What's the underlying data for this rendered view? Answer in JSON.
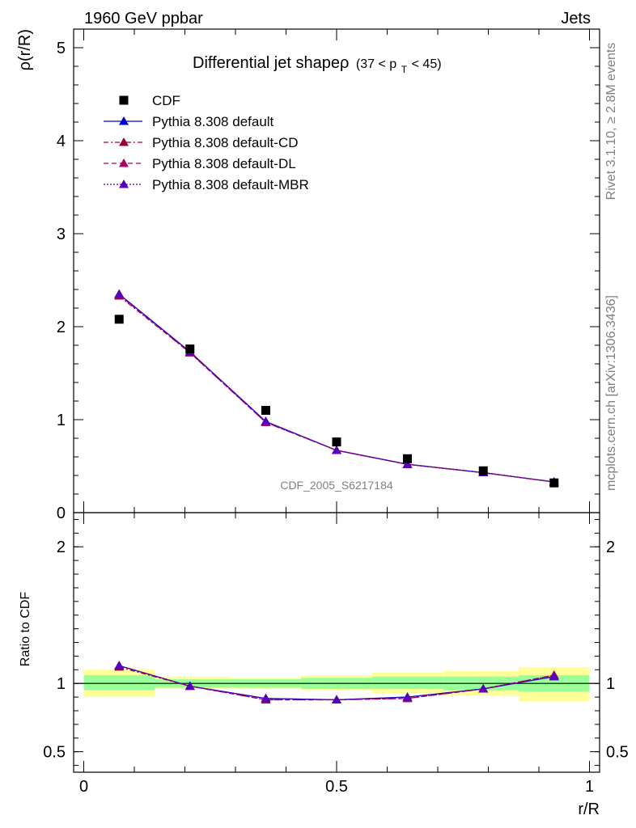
{
  "header": {
    "left_label": "1960 GeV ppbar",
    "right_label": "Jets"
  },
  "side": {
    "rivet": "Rivet 3.1.10, ≥ 2.8M events",
    "mcplots": "mcplots.cern.ch [arXiv:1306.3436]"
  },
  "watermark": "CDF_2005_S6217184",
  "chart_data": [
    {
      "type": "line",
      "title": "Differential jet shapeρ",
      "title_cut": "(37 < p",
      "title_cut_sub": "T",
      "title_cut_end": " < 45)",
      "ylabel": "ρ(r/R)",
      "xlim": [
        -0.02,
        1.02
      ],
      "ylim": [
        0,
        5.2
      ],
      "yticks": [
        "0",
        "1",
        "2",
        "3",
        "4",
        "5"
      ],
      "legend_position": "top-left",
      "colors": {
        "data": "#000000",
        "default": "#0000cc",
        "default-CD": "#990033",
        "default-DL": "#aa0066",
        "default-MBR": "#5500bb"
      },
      "data": {
        "name": "CDF",
        "x": [
          0.07,
          0.21,
          0.36,
          0.5,
          0.64,
          0.79,
          0.93
        ],
        "y": [
          2.08,
          1.76,
          1.1,
          0.76,
          0.58,
          0.45,
          0.32
        ]
      },
      "series": [
        {
          "name": "Pythia 8.308 default",
          "style": "solid",
          "color": "#0000cc",
          "x": [
            0.07,
            0.21,
            0.36,
            0.5,
            0.64,
            0.79,
            0.93
          ],
          "y": [
            2.35,
            1.73,
            0.98,
            0.67,
            0.52,
            0.43,
            0.33
          ]
        },
        {
          "name": "Pythia 8.308 default-CD",
          "style": "dashdot",
          "color": "#990033",
          "x": [
            0.07,
            0.21,
            0.36,
            0.5,
            0.64,
            0.79,
            0.93
          ],
          "y": [
            2.33,
            1.72,
            0.97,
            0.67,
            0.52,
            0.43,
            0.33
          ]
        },
        {
          "name": "Pythia 8.308 default-DL",
          "style": "dashed",
          "color": "#aa0066",
          "x": [
            0.07,
            0.21,
            0.36,
            0.5,
            0.64,
            0.79,
            0.93
          ],
          "y": [
            2.34,
            1.72,
            0.97,
            0.67,
            0.52,
            0.43,
            0.33
          ]
        },
        {
          "name": "Pythia 8.308 default-MBR",
          "style": "dotted",
          "color": "#5500bb",
          "x": [
            0.07,
            0.21,
            0.36,
            0.5,
            0.64,
            0.79,
            0.93
          ],
          "y": [
            2.35,
            1.73,
            0.98,
            0.67,
            0.52,
            0.43,
            0.33
          ]
        }
      ]
    },
    {
      "type": "line",
      "xlabel": "r/R",
      "ylabel": "Ratio to CDF",
      "xlim": [
        -0.02,
        1.02
      ],
      "ylim": [
        0.35,
        2.25
      ],
      "yticks": [
        {
          "v": 0.5,
          "label": "0.5"
        },
        {
          "v": 1.0,
          "label": "1"
        },
        {
          "v": 2.0,
          "label": "2"
        }
      ],
      "xticks": [
        {
          "v": 0.0,
          "label": "0"
        },
        {
          "v": 0.5,
          "label": "0.5"
        },
        {
          "v": 1.0,
          "label": "1"
        }
      ],
      "bands": {
        "colors": {
          "inner": "#99ff99",
          "outer": "#ffff99"
        },
        "edges": [
          0.0,
          0.14,
          0.29,
          0.43,
          0.57,
          0.71,
          0.86,
          1.0
        ],
        "inner": [
          [
            0.95,
            1.06
          ],
          [
            0.97,
            1.03
          ],
          [
            0.97,
            1.03
          ],
          [
            0.96,
            1.04
          ],
          [
            0.96,
            1.05
          ],
          [
            0.95,
            1.05
          ],
          [
            0.94,
            1.06
          ]
        ],
        "outer": [
          [
            0.9,
            1.1
          ],
          [
            0.96,
            1.05
          ],
          [
            0.96,
            1.04
          ],
          [
            0.95,
            1.06
          ],
          [
            0.93,
            1.08
          ],
          [
            0.91,
            1.09
          ],
          [
            0.87,
            1.12
          ]
        ]
      },
      "series": [
        {
          "name": "Pythia 8.308 default",
          "style": "solid",
          "color": "#0000cc",
          "x": [
            0.07,
            0.21,
            0.36,
            0.5,
            0.64,
            0.79,
            0.93
          ],
          "y": [
            1.13,
            0.98,
            0.89,
            0.88,
            0.9,
            0.96,
            1.05
          ]
        },
        {
          "name": "Pythia 8.308 default-CD",
          "style": "dashdot",
          "color": "#990033",
          "x": [
            0.07,
            0.21,
            0.36,
            0.5,
            0.64,
            0.79,
            0.93
          ],
          "y": [
            1.12,
            0.98,
            0.88,
            0.88,
            0.89,
            0.96,
            1.06
          ]
        },
        {
          "name": "Pythia 8.308 default-DL",
          "style": "dashed",
          "color": "#aa0066",
          "x": [
            0.07,
            0.21,
            0.36,
            0.5,
            0.64,
            0.79,
            0.93
          ],
          "y": [
            1.13,
            0.98,
            0.88,
            0.88,
            0.89,
            0.96,
            1.06
          ]
        },
        {
          "name": "Pythia 8.308 default-MBR",
          "style": "dotted",
          "color": "#5500bb",
          "x": [
            0.07,
            0.21,
            0.36,
            0.5,
            0.64,
            0.79,
            0.93
          ],
          "y": [
            1.13,
            0.98,
            0.89,
            0.88,
            0.9,
            0.96,
            1.05
          ]
        }
      ]
    }
  ]
}
